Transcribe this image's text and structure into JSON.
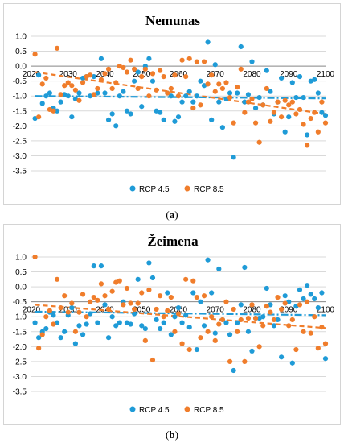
{
  "figure": {
    "panel_labels": [
      {
        "open": "(",
        "letter": "a",
        "close": ")"
      },
      {
        "open": "(",
        "letter": "b",
        "close": ")"
      }
    ]
  },
  "chart_data": [
    {
      "type": "scatter",
      "title": "Nemunas",
      "xlim": [
        2020,
        2100
      ],
      "x_ticks": [
        2020,
        2030,
        2040,
        2050,
        2060,
        2070,
        2080,
        2090,
        2100
      ],
      "ylim": [
        -3.5,
        1.0
      ],
      "y_ticks": [
        -3.5,
        -3.0,
        -2.5,
        -2.0,
        -1.5,
        -1.0,
        -0.5,
        0.0,
        0.5,
        1.0
      ],
      "x_axis_at_y": 0,
      "grid": "horizontal",
      "legend_position": "bottom",
      "colors": {
        "RCP 4.5": "#1f9bd7",
        "RCP 8.5": "#f07d2b"
      },
      "series": [
        {
          "name": "RCP 4.5",
          "x": [
            2021,
            2022,
            2023,
            2024,
            2025,
            2026,
            2027,
            2028,
            2029,
            2030,
            2031,
            2032,
            2033,
            2034,
            2035,
            2036,
            2037,
            2038,
            2039,
            2040,
            2041,
            2042,
            2043,
            2044,
            2045,
            2046,
            2047,
            2048,
            2049,
            2050,
            2051,
            2052,
            2053,
            2054,
            2055,
            2056,
            2057,
            2058,
            2059,
            2060,
            2061,
            2062,
            2063,
            2064,
            2065,
            2066,
            2067,
            2068,
            2069,
            2070,
            2071,
            2072,
            2073,
            2074,
            2075,
            2076,
            2077,
            2078,
            2079,
            2080,
            2081,
            2082,
            2083,
            2084,
            2085,
            2086,
            2087,
            2088,
            2089,
            2090,
            2091,
            2092,
            2093,
            2094,
            2095,
            2096,
            2097,
            2098,
            2099,
            2100
          ],
          "y": [
            -1.75,
            -0.3,
            -1.25,
            -1.0,
            -0.9,
            -1.4,
            -1.5,
            -1.2,
            -0.95,
            -1.0,
            -1.7,
            -1.1,
            -0.9,
            -0.4,
            -0.35,
            -1.0,
            -0.35,
            -0.9,
            0.25,
            -0.9,
            -1.8,
            -1.6,
            -2.0,
            -1.0,
            -0.85,
            -1.5,
            -1.6,
            -0.5,
            -0.2,
            -1.35,
            0.0,
            0.25,
            -0.5,
            -1.5,
            -1.55,
            -1.8,
            -0.9,
            -1.0,
            -1.85,
            -1.7,
            -1.2,
            -1.0,
            -0.85,
            -1.2,
            -1.0,
            -0.5,
            -0.65,
            0.8,
            -1.8,
            0.05,
            -1.2,
            -2.05,
            -1.1,
            -0.9,
            -3.05,
            -0.9,
            0.65,
            -1.2,
            -0.95,
            0.15,
            -1.4,
            -1.05,
            -1.3,
            -0.15,
            -0.85,
            -1.6,
            -1.2,
            -0.4,
            -2.2,
            -1.7,
            -0.55,
            -1.05,
            -0.35,
            -1.05,
            -2.3,
            -0.5,
            -0.45,
            -0.9,
            -1.55,
            -1.65
          ]
        },
        {
          "name": "RCP 8.5",
          "x": [
            2021,
            2022,
            2023,
            2024,
            2025,
            2026,
            2027,
            2028,
            2029,
            2030,
            2031,
            2032,
            2033,
            2034,
            2035,
            2036,
            2037,
            2038,
            2039,
            2040,
            2041,
            2042,
            2043,
            2044,
            2045,
            2046,
            2047,
            2048,
            2049,
            2050,
            2051,
            2052,
            2053,
            2054,
            2055,
            2056,
            2057,
            2058,
            2059,
            2060,
            2061,
            2062,
            2063,
            2064,
            2065,
            2066,
            2067,
            2068,
            2069,
            2070,
            2071,
            2072,
            2073,
            2074,
            2075,
            2076,
            2077,
            2078,
            2079,
            2080,
            2081,
            2082,
            2083,
            2084,
            2085,
            2086,
            2087,
            2088,
            2089,
            2090,
            2091,
            2092,
            2093,
            2094,
            2095,
            2096,
            2097,
            2098,
            2099,
            2100
          ],
          "y": [
            0.4,
            -1.7,
            -0.6,
            -0.4,
            -1.45,
            -1.5,
            0.6,
            -0.95,
            -0.65,
            -0.55,
            -0.65,
            -0.8,
            -1.15,
            -0.55,
            -0.35,
            -0.3,
            -0.95,
            -0.75,
            -0.45,
            -0.25,
            -0.1,
            -0.75,
            -0.55,
            0.0,
            -0.05,
            -0.2,
            0.2,
            -0.1,
            -0.75,
            -0.35,
            -0.1,
            -1.0,
            -0.25,
            -0.8,
            -0.15,
            -0.35,
            -0.9,
            -0.75,
            -0.3,
            -1.0,
            0.2,
            -0.35,
            0.25,
            -1.4,
            0.15,
            -1.3,
            0.15,
            -0.6,
            -0.3,
            -0.85,
            -0.6,
            -0.75,
            -0.55,
            -1.05,
            -1.9,
            -0.7,
            -0.1,
            -1.55,
            -1.2,
            -1.1,
            -1.9,
            -2.55,
            -1.3,
            -0.75,
            -1.85,
            -1.55,
            -1.2,
            -1.7,
            -1.15,
            -1.3,
            -1.2,
            -1.6,
            -1.45,
            -1.95,
            -2.65,
            -1.75,
            -1.55,
            -2.2,
            -1.2,
            -1.9
          ]
        }
      ],
      "trendlines": [
        {
          "series": "RCP 4.5",
          "style": "dash-dot",
          "y_start": -1.0,
          "y_end": -1.08
        },
        {
          "series": "RCP 8.5",
          "style": "dashed",
          "y_start": -0.2,
          "y_end": -1.6
        }
      ]
    },
    {
      "type": "scatter",
      "title": "Žeimena",
      "xlim": [
        2020,
        2100
      ],
      "x_ticks": [
        2020,
        2030,
        2040,
        2050,
        2060,
        2070,
        2080,
        2090,
        2100
      ],
      "ylim": [
        -3.5,
        1.0
      ],
      "y_ticks": [
        -3.5,
        -3.0,
        -2.5,
        -2.0,
        -1.5,
        -1.0,
        -0.5,
        0.0,
        0.5,
        1.0
      ],
      "x_axis_at_y": -0.5,
      "grid": "horizontal",
      "legend_position": "bottom",
      "colors": {
        "RCP 4.5": "#1f9bd7",
        "RCP 8.5": "#f07d2b"
      },
      "series": [
        {
          "name": "RCP 4.5",
          "x": [
            2021,
            2022,
            2023,
            2024,
            2025,
            2026,
            2027,
            2028,
            2029,
            2030,
            2031,
            2032,
            2033,
            2034,
            2035,
            2036,
            2037,
            2038,
            2039,
            2040,
            2041,
            2042,
            2043,
            2044,
            2045,
            2046,
            2047,
            2048,
            2049,
            2050,
            2051,
            2052,
            2053,
            2054,
            2055,
            2056,
            2057,
            2058,
            2059,
            2060,
            2061,
            2062,
            2063,
            2064,
            2065,
            2066,
            2067,
            2068,
            2069,
            2070,
            2071,
            2072,
            2073,
            2074,
            2075,
            2076,
            2077,
            2078,
            2079,
            2080,
            2081,
            2082,
            2083,
            2084,
            2085,
            2086,
            2087,
            2088,
            2089,
            2090,
            2091,
            2092,
            2093,
            2094,
            2095,
            2096,
            2097,
            2098,
            2099,
            2100
          ],
          "y": [
            -1.2,
            -1.7,
            -1.5,
            -1.4,
            -0.85,
            -0.95,
            -1.2,
            -1.7,
            -1.5,
            -0.95,
            -0.7,
            -1.9,
            -1.3,
            -1.6,
            -1.25,
            -0.9,
            0.7,
            -1.2,
            0.7,
            -0.6,
            -1.7,
            -1.0,
            -1.3,
            -1.2,
            -0.5,
            -1.2,
            -1.25,
            -0.9,
            0.25,
            -1.3,
            -1.4,
            0.8,
            0.3,
            -1.1,
            -1.4,
            -1.2,
            -0.2,
            -1.6,
            -1.0,
            -0.7,
            -1.2,
            -0.95,
            -1.35,
            -0.2,
            -2.1,
            -0.5,
            -1.3,
            0.9,
            -0.2,
            -1.55,
            0.6,
            -1.1,
            -1.2,
            -1.6,
            -2.8,
            -1.2,
            -0.6,
            0.65,
            -1.5,
            -2.15,
            -1.05,
            -1.05,
            -1.0,
            -0.05,
            -0.6,
            -1.3,
            -1.1,
            -2.35,
            -0.3,
            -0.5,
            -2.55,
            -0.65,
            -0.1,
            -0.4,
            0.05,
            -0.25,
            -0.4,
            -0.7,
            -0.2,
            -2.4
          ]
        },
        {
          "name": "RCP 8.5",
          "x": [
            2021,
            2022,
            2023,
            2024,
            2025,
            2026,
            2027,
            2028,
            2029,
            2030,
            2031,
            2032,
            2033,
            2034,
            2035,
            2036,
            2037,
            2038,
            2039,
            2040,
            2041,
            2042,
            2043,
            2044,
            2045,
            2046,
            2047,
            2048,
            2049,
            2050,
            2051,
            2052,
            2053,
            2054,
            2055,
            2056,
            2057,
            2058,
            2059,
            2060,
            2061,
            2062,
            2063,
            2064,
            2065,
            2066,
            2067,
            2068,
            2069,
            2070,
            2071,
            2072,
            2073,
            2074,
            2075,
            2076,
            2077,
            2078,
            2079,
            2080,
            2081,
            2082,
            2083,
            2084,
            2085,
            2086,
            2087,
            2088,
            2089,
            2090,
            2091,
            2092,
            2093,
            2094,
            2095,
            2096,
            2097,
            2098,
            2099,
            2100
          ],
          "y": [
            1.0,
            -2.05,
            -1.6,
            -1.0,
            -0.8,
            -1.25,
            0.25,
            -0.7,
            -0.3,
            -0.85,
            -0.55,
            -1.5,
            -0.85,
            -0.25,
            -1.0,
            -0.5,
            -0.35,
            -0.45,
            0.1,
            -0.3,
            -0.75,
            -0.15,
            0.15,
            0.2,
            -0.6,
            -0.05,
            -0.55,
            -0.75,
            -0.55,
            -0.2,
            -1.8,
            -0.1,
            -2.45,
            -0.75,
            -0.3,
            -1.0,
            -0.8,
            -0.35,
            -1.5,
            -0.9,
            -1.9,
            0.25,
            -2.1,
            0.2,
            -0.35,
            -1.7,
            -0.3,
            -1.5,
            -1.0,
            -1.8,
            -1.25,
            -1.1,
            -0.5,
            -2.5,
            -0.75,
            -1.5,
            -1.1,
            -2.5,
            -1.05,
            -0.6,
            -1.05,
            -2.0,
            -1.3,
            -0.65,
            -0.85,
            -1.1,
            -0.35,
            -0.75,
            -0.55,
            -1.3,
            -1.1,
            -2.1,
            -0.6,
            -1.5,
            -0.5,
            -1.55,
            -1.0,
            -2.05,
            -1.35,
            -1.9
          ]
        }
      ],
      "trendlines": [
        {
          "series": "RCP 4.5",
          "style": "dash-dot",
          "y_start": -0.83,
          "y_end": -0.95
        },
        {
          "series": "RCP 8.5",
          "style": "dashed",
          "y_start": -0.6,
          "y_end": -1.38
        }
      ]
    }
  ]
}
